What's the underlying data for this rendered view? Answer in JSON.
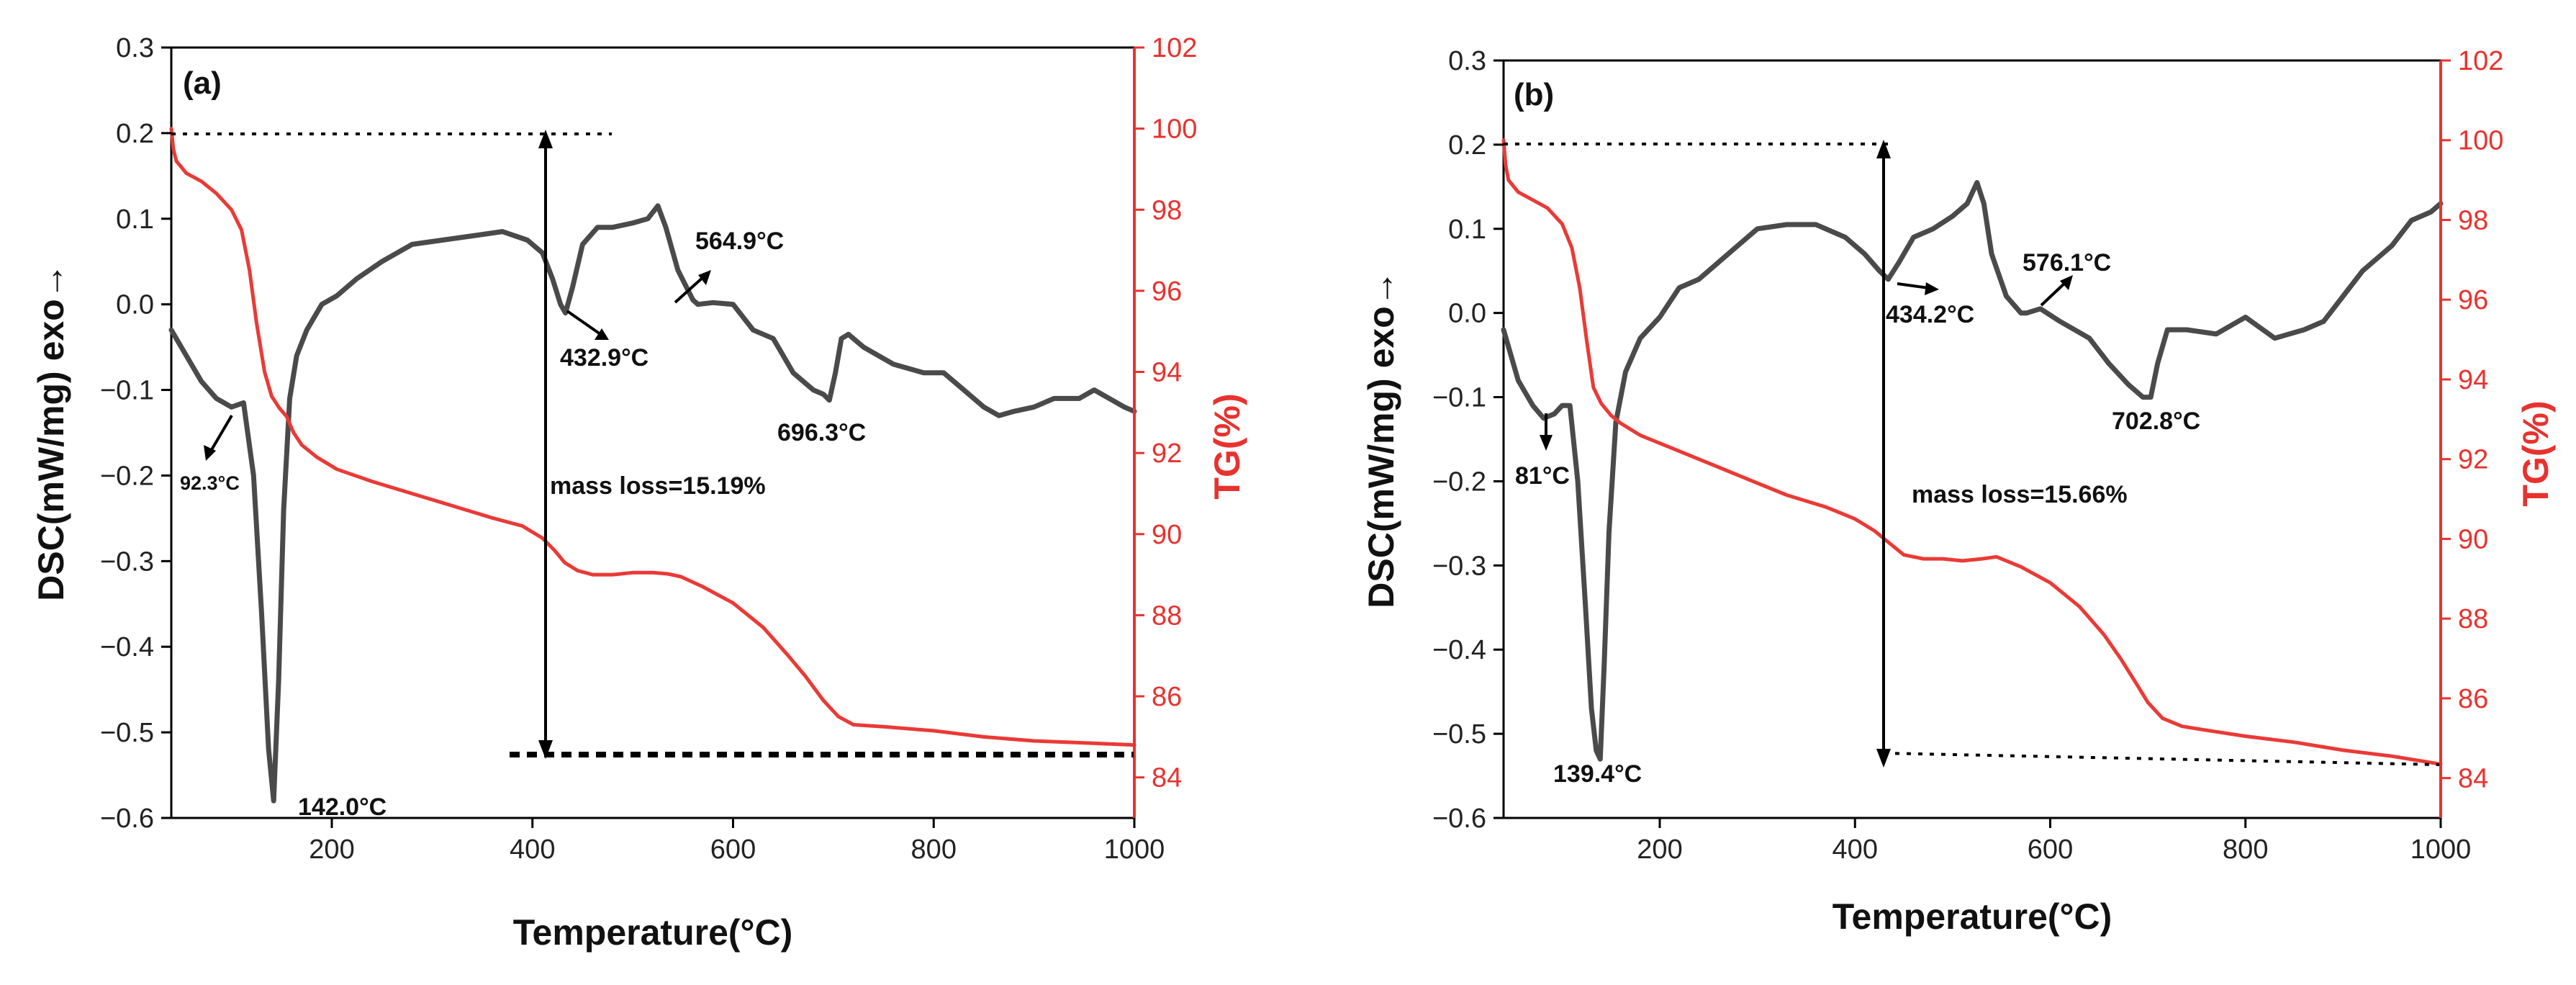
{
  "chart_data": [
    {
      "type": "line",
      "panel_label": "(a)",
      "xlabel": "Temperature(°C)",
      "ylabel_left": "DSC(mW/mg) exo→",
      "ylabel_right": "TG(%)",
      "xlim": [
        40,
        1000
      ],
      "ylim_left": [
        -0.6,
        0.3
      ],
      "ylim_right": [
        83,
        102
      ],
      "x_ticks": [
        200,
        400,
        600,
        800,
        1000
      ],
      "y_left_ticks": [
        "0.3",
        "0.2",
        "0.1",
        "0.0",
        "−0.1",
        "−0.2",
        "−0.3",
        "−0.4",
        "−0.5",
        "−0.6"
      ],
      "y_right_ticks": [
        84,
        86,
        88,
        90,
        92,
        94,
        96,
        98,
        100,
        102
      ],
      "series": [
        {
          "name": "DSC",
          "color": "#4a4a4a",
          "axis": "left",
          "x": [
            40,
            55,
            70,
            85,
            100,
            112,
            122,
            130,
            137,
            142,
            147,
            152,
            158,
            165,
            175,
            190,
            205,
            225,
            250,
            280,
            310,
            340,
            370,
            395,
            410,
            420,
            428,
            433,
            440,
            450,
            465,
            480,
            500,
            515,
            525,
            533,
            545,
            560,
            565,
            580,
            600,
            620,
            640,
            660,
            680,
            690,
            696,
            702,
            708,
            715,
            730,
            760,
            790,
            810,
            830,
            850,
            865,
            880,
            900,
            920,
            945,
            960,
            975,
            990,
            1000
          ],
          "y": [
            -0.03,
            -0.06,
            -0.09,
            -0.11,
            -0.12,
            -0.115,
            -0.2,
            -0.36,
            -0.52,
            -0.58,
            -0.44,
            -0.24,
            -0.11,
            -0.06,
            -0.03,
            0.0,
            0.01,
            0.03,
            0.05,
            0.07,
            0.075,
            0.08,
            0.085,
            0.075,
            0.06,
            0.03,
            0.0,
            -0.01,
            0.02,
            0.07,
            0.09,
            0.09,
            0.095,
            0.1,
            0.115,
            0.09,
            0.04,
            0.005,
            0.0,
            0.002,
            0.0,
            -0.03,
            -0.04,
            -0.08,
            -0.1,
            -0.105,
            -0.112,
            -0.08,
            -0.04,
            -0.035,
            -0.05,
            -0.07,
            -0.08,
            -0.08,
            -0.1,
            -0.12,
            -0.13,
            -0.125,
            -0.12,
            -0.11,
            -0.11,
            -0.1,
            -0.11,
            -0.12,
            -0.125
          ]
        },
        {
          "name": "TG",
          "color": "#ea3a36",
          "axis": "right",
          "x": [
            40,
            42,
            45,
            55,
            70,
            85,
            100,
            110,
            118,
            125,
            133,
            140,
            148,
            155,
            162,
            170,
            185,
            205,
            240,
            280,
            320,
            360,
            390,
            410,
            422,
            432,
            445,
            460,
            480,
            500,
            520,
            535,
            548,
            570,
            600,
            630,
            655,
            672,
            690,
            705,
            720,
            750,
            800,
            850,
            900,
            950,
            1000
          ],
          "y": [
            100.0,
            99.5,
            99.2,
            98.9,
            98.7,
            98.4,
            98.0,
            97.5,
            96.5,
            95.2,
            94.0,
            93.4,
            93.1,
            92.9,
            92.5,
            92.2,
            91.9,
            91.6,
            91.3,
            91.0,
            90.7,
            90.4,
            90.2,
            89.9,
            89.6,
            89.3,
            89.1,
            89.0,
            89.0,
            89.05,
            89.05,
            89.02,
            88.95,
            88.7,
            88.3,
            87.7,
            87.0,
            86.5,
            85.9,
            85.5,
            85.3,
            85.25,
            85.15,
            85.0,
            84.9,
            84.85,
            84.8
          ]
        }
      ],
      "annotations": [
        "92.3°C",
        "142.0°C",
        "432.9°C",
        "564.9°C",
        "696.3°C",
        "mass loss=15.19%"
      ]
    },
    {
      "type": "line",
      "panel_label": "(b)",
      "xlabel": "Temperature(°C)",
      "ylabel_left": "DSC(mW/mg) exo→",
      "ylabel_right": "TG(%)",
      "xlim": [
        40,
        1000
      ],
      "ylim_left": [
        -0.6,
        0.3
      ],
      "ylim_right": [
        83,
        102
      ],
      "x_ticks": [
        200,
        400,
        600,
        800,
        1000
      ],
      "y_left_ticks": [
        "0.3",
        "0.2",
        "0.1",
        "0.0",
        "−0.1",
        "−0.2",
        "−0.3",
        "−0.4",
        "−0.5",
        "−0.6"
      ],
      "y_right_ticks": [
        84,
        86,
        88,
        90,
        92,
        94,
        96,
        98,
        100,
        102
      ],
      "series": [
        {
          "name": "DSC",
          "color": "#4a4a4a",
          "axis": "left",
          "x": [
            40,
            55,
            70,
            81,
            92,
            100,
            108,
            116,
            124,
            130,
            135,
            139,
            143,
            148,
            155,
            165,
            180,
            200,
            220,
            240,
            270,
            300,
            330,
            360,
            390,
            410,
            425,
            434,
            445,
            460,
            480,
            500,
            515,
            525,
            532,
            540,
            555,
            570,
            576,
            590,
            610,
            640,
            660,
            680,
            695,
            703,
            710,
            720,
            740,
            770,
            800,
            830,
            860,
            880,
            900,
            920,
            950,
            970,
            990,
            1000
          ],
          "y": [
            -0.02,
            -0.08,
            -0.11,
            -0.125,
            -0.12,
            -0.11,
            -0.11,
            -0.2,
            -0.35,
            -0.47,
            -0.52,
            -0.53,
            -0.42,
            -0.26,
            -0.13,
            -0.07,
            -0.03,
            -0.005,
            0.03,
            0.04,
            0.07,
            0.1,
            0.105,
            0.105,
            0.09,
            0.07,
            0.05,
            0.04,
            0.06,
            0.09,
            0.1,
            0.115,
            0.13,
            0.155,
            0.13,
            0.07,
            0.02,
            0.0,
            0.0,
            0.005,
            -0.01,
            -0.03,
            -0.06,
            -0.085,
            -0.1,
            -0.1,
            -0.06,
            -0.02,
            -0.02,
            -0.025,
            -0.005,
            -0.03,
            -0.02,
            -0.01,
            0.02,
            0.05,
            0.08,
            0.11,
            0.12,
            0.13
          ]
        },
        {
          "name": "TG",
          "color": "#ea3a36",
          "axis": "right",
          "x": [
            40,
            42,
            45,
            55,
            70,
            85,
            100,
            110,
            118,
            125,
            132,
            140,
            150,
            160,
            180,
            210,
            250,
            290,
            330,
            370,
            400,
            420,
            435,
            450,
            470,
            490,
            510,
            530,
            545,
            570,
            600,
            630,
            655,
            672,
            690,
            700,
            715,
            735,
            760,
            800,
            850,
            900,
            950,
            1000
          ],
          "y": [
            100.0,
            99.4,
            99.0,
            98.7,
            98.5,
            98.3,
            97.9,
            97.3,
            96.3,
            95.0,
            93.8,
            93.4,
            93.1,
            92.9,
            92.6,
            92.3,
            91.9,
            91.5,
            91.1,
            90.8,
            90.5,
            90.2,
            89.9,
            89.6,
            89.5,
            89.5,
            89.45,
            89.5,
            89.55,
            89.3,
            88.9,
            88.3,
            87.6,
            87.0,
            86.3,
            85.9,
            85.5,
            85.3,
            85.2,
            85.05,
            84.9,
            84.7,
            84.55,
            84.35
          ]
        }
      ],
      "annotations": [
        "81°C",
        "139.4°C",
        "434.2°C",
        "576.1°C",
        "702.8°C",
        "mass loss=15.66%"
      ]
    }
  ]
}
